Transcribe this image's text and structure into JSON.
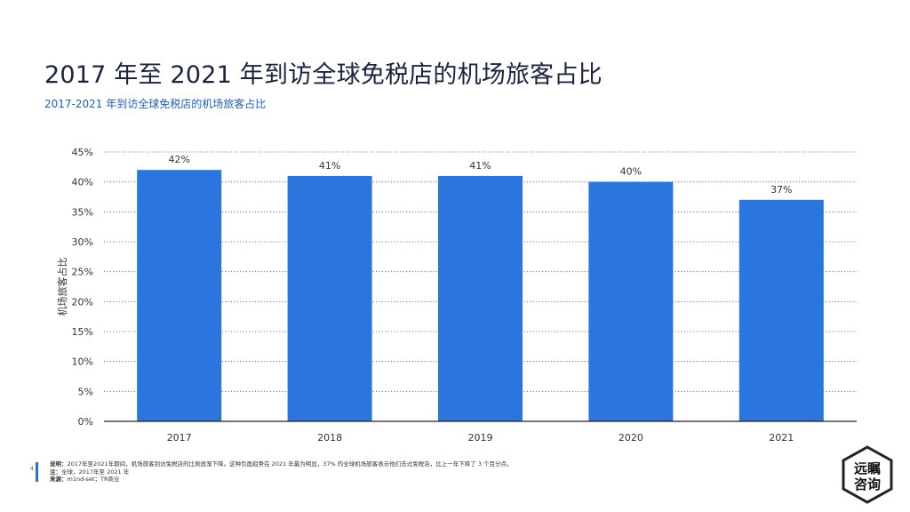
{
  "header": {
    "title": "2017 年至 2021 年到访全球免税店的机场旅客占比",
    "subtitle": "2017-2021 年到访全球免税店的机场旅客占比"
  },
  "chart_data": {
    "type": "bar",
    "categories": [
      "2017",
      "2018",
      "2019",
      "2020",
      "2021"
    ],
    "values": [
      42,
      41,
      41,
      40,
      37
    ],
    "value_labels": [
      "42%",
      "41%",
      "41%",
      "40%",
      "37%"
    ],
    "ylabel": "机场旅客占比",
    "xlabel": "",
    "ylim": [
      0,
      45
    ],
    "yticks": [
      "0%",
      "5%",
      "10%",
      "15%",
      "20%",
      "25%",
      "30%",
      "35%",
      "40%",
      "45%"
    ],
    "grid": "dotted horizontal",
    "bar_color": "#2a75de"
  },
  "footer": {
    "page_number": "4",
    "note_label": "说明：",
    "note_text": "2017年至2021年期间，机场旅客到访免税店的比例逐渐下降。这种负面趋势在 2021 年最为明显，37% 的全球机场旅客表示他们去过免税店，比上一年下降了 3 个百分点。",
    "scope_label": "注：",
    "scope_text": "全球，2017年至 2021 年",
    "source_label": "来源：",
    "source_text": "m1nd-set；TR商业"
  },
  "logo": {
    "text_top": "远瞩",
    "text_bottom": "咨询"
  }
}
